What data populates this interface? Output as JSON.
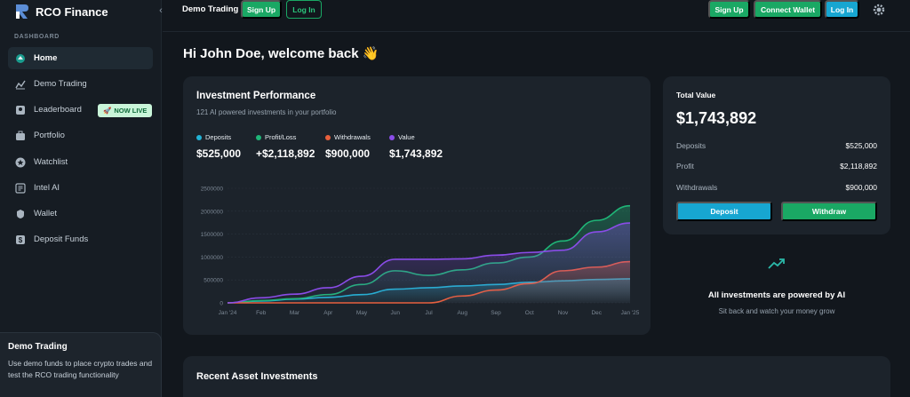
{
  "brand": {
    "name": "RCO Finance"
  },
  "sidebar": {
    "section_label": "DASHBOARD",
    "items": [
      {
        "label": "Home",
        "icon": "home-icon"
      },
      {
        "label": "Demo Trading",
        "icon": "chart-line-icon"
      },
      {
        "label": "Leaderboard",
        "icon": "leaderboard-icon"
      },
      {
        "label": "Portfolio",
        "icon": "portfolio-icon"
      },
      {
        "label": "Watchlist",
        "icon": "star-icon"
      },
      {
        "label": "Intel AI",
        "icon": "ai-icon"
      },
      {
        "label": "Wallet",
        "icon": "wallet-icon"
      },
      {
        "label": "Deposit Funds",
        "icon": "deposit-icon"
      }
    ],
    "live_badge": "NOW LIVE",
    "demo_card": {
      "title": "Demo Trading",
      "description": "Use demo funds to place crypto trades and test the RCO trading functionality"
    }
  },
  "topbar": {
    "left_label": "Demo Trading",
    "left_signup": "Sign Up",
    "left_login": "Log In",
    "right_signup": "Sign Up",
    "connect_wallet": "Connect Wallet",
    "right_login": "Log In"
  },
  "greeting": "Hi John Doe, welcome back 👋",
  "performance": {
    "title": "Investment Performance",
    "subtitle": "121 AI powered investments in your portfolio",
    "legend": [
      {
        "name": "Deposits",
        "value": "$525,000",
        "color": "#22b3d6"
      },
      {
        "name": "Profit/Loss",
        "value": "+$2,118,892",
        "color": "#1fb577"
      },
      {
        "name": "Withdrawals",
        "value": "$900,000",
        "color": "#e8603c"
      },
      {
        "name": "Value",
        "value": "$1,743,892",
        "color": "#8a4ce8"
      }
    ]
  },
  "chart_data": {
    "type": "area",
    "categories": [
      "Jan '24",
      "Feb",
      "Mar",
      "Apr",
      "May",
      "Jun",
      "Jul",
      "Aug",
      "Sep",
      "Oct",
      "Nov",
      "Dec",
      "Jan '25"
    ],
    "y_ticks": [
      "2500000",
      "2000000",
      "1500000",
      "1000000",
      "500000",
      "0"
    ],
    "ylim": [
      0,
      2500000
    ],
    "grid": true,
    "series": [
      {
        "name": "Deposits",
        "color": "#22b3d6",
        "values": [
          0,
          40000,
          80000,
          120000,
          180000,
          300000,
          330000,
          370000,
          400000,
          450000,
          480000,
          510000,
          525000
        ]
      },
      {
        "name": "Profit/Loss",
        "color": "#1fb577",
        "values": [
          0,
          50000,
          90000,
          180000,
          400000,
          700000,
          600000,
          720000,
          870000,
          1000000,
          1350000,
          1800000,
          2118892
        ]
      },
      {
        "name": "Withdrawals",
        "color": "#e8603c",
        "values": [
          0,
          0,
          0,
          0,
          0,
          0,
          0,
          150000,
          280000,
          420000,
          700000,
          780000,
          900000
        ]
      },
      {
        "name": "Value",
        "color": "#8a4ce8",
        "values": [
          0,
          110000,
          190000,
          330000,
          580000,
          950000,
          950000,
          960000,
          1040000,
          1100000,
          1150000,
          1550000,
          1743892
        ]
      }
    ]
  },
  "total": {
    "label": "Total Value",
    "value": "$1,743,892",
    "rows": [
      {
        "label": "Deposits",
        "value": "$525,000"
      },
      {
        "label": "Profit",
        "value": "$2,118,892"
      },
      {
        "label": "Withdrawals",
        "value": "$900,000"
      }
    ],
    "deposit_button": "Deposit",
    "withdraw_button": "Withdraw"
  },
  "ai_note": {
    "heading": "All investments are powered by AI",
    "subtext": "Sit back and watch your money grow"
  },
  "recent": {
    "title": "Recent Asset Investments"
  }
}
